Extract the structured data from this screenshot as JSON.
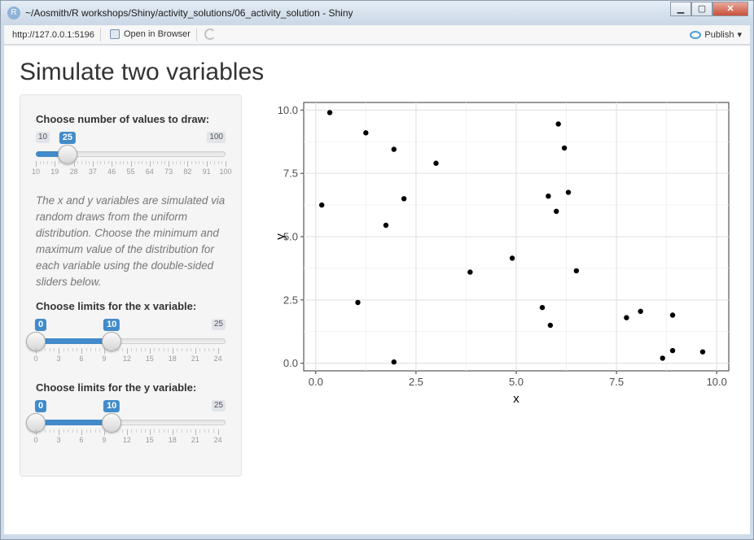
{
  "window": {
    "title": "~/Aosmith/R workshops/Shiny/activity_solutions/06_activity_solution - Shiny",
    "app_icon": "R",
    "buttons": {
      "minimize": "▁",
      "maximize": "▢",
      "close": "✕"
    }
  },
  "toolbar": {
    "url": "http://127.0.0.1:5196",
    "open_browser": "Open in Browser",
    "publish": "Publish",
    "publish_caret": "▾"
  },
  "page": {
    "title": "Simulate two variables"
  },
  "sidebar": {
    "n_slider": {
      "label": "Choose number of values to draw:",
      "min": 10,
      "max": 100,
      "value": 25,
      "min_label": "10",
      "max_label": "100",
      "value_label": "25",
      "ticks": [
        "10",
        "19",
        "28",
        "37",
        "46",
        "55",
        "64",
        "73",
        "82",
        "91",
        "100"
      ]
    },
    "help_text": "The x and y variables are simulated via random draws from the uniform distribution. Choose the minimum and maximum value of the distribution for each variable using the double-sided sliders below.",
    "x_slider": {
      "label": "Choose limits for the x variable:",
      "min": 0,
      "max": 25,
      "low": 0,
      "high": 10,
      "low_label": "0",
      "high_label": "10",
      "max_label": "25",
      "ticks": [
        "0",
        "3",
        "6",
        "9",
        "12",
        "15",
        "18",
        "21",
        "24"
      ]
    },
    "y_slider": {
      "label": "Choose limits for the y variable:",
      "min": 0,
      "max": 25,
      "low": 0,
      "high": 10,
      "low_label": "0",
      "high_label": "10",
      "max_label": "25",
      "ticks": [
        "0",
        "3",
        "6",
        "9",
        "12",
        "15",
        "18",
        "21",
        "24"
      ]
    }
  },
  "chart_data": {
    "type": "scatter",
    "xlabel": "x",
    "ylabel": "y",
    "xlim": [
      -0.3,
      10.3
    ],
    "ylim": [
      -0.3,
      10.3
    ],
    "x_ticks": [
      "0.0",
      "2.5",
      "5.0",
      "7.5",
      "10.0"
    ],
    "y_ticks": [
      "0.0",
      "2.5",
      "5.0",
      "7.5",
      "10.0"
    ],
    "grid": true,
    "points": [
      [
        0.15,
        6.25
      ],
      [
        0.35,
        9.9
      ],
      [
        1.05,
        2.4
      ],
      [
        1.25,
        9.1
      ],
      [
        1.75,
        5.45
      ],
      [
        1.95,
        8.45
      ],
      [
        1.95,
        0.05
      ],
      [
        2.2,
        6.5
      ],
      [
        3.0,
        7.9
      ],
      [
        3.85,
        3.6
      ],
      [
        4.9,
        4.15
      ],
      [
        5.65,
        2.2
      ],
      [
        5.8,
        6.6
      ],
      [
        5.85,
        1.5
      ],
      [
        6.0,
        6.0
      ],
      [
        6.05,
        9.45
      ],
      [
        6.2,
        8.5
      ],
      [
        6.3,
        6.75
      ],
      [
        6.5,
        3.65
      ],
      [
        7.75,
        1.8
      ],
      [
        8.1,
        2.05
      ],
      [
        8.65,
        0.2
      ],
      [
        8.9,
        1.9
      ],
      [
        8.9,
        0.5
      ],
      [
        9.65,
        0.45
      ]
    ],
    "point_color": "#000000"
  }
}
